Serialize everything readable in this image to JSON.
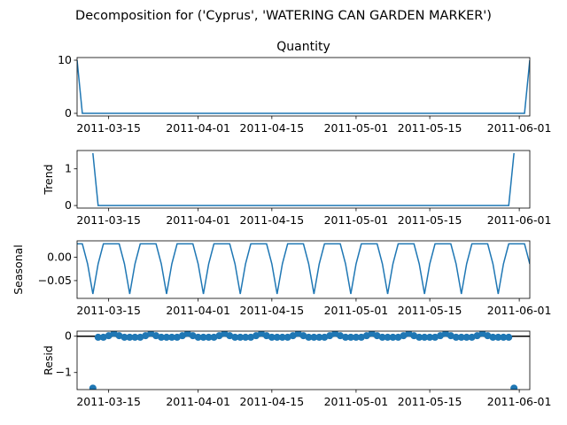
{
  "figure": {
    "suptitle": "Decomposition for ('Cyprus', 'WATERING CAN GARDEN MARKER')"
  },
  "colors": {
    "series": "#1f77b4",
    "axis": "#000000",
    "background": "#ffffff"
  },
  "chart_data": [
    {
      "type": "line",
      "title": "Quantity",
      "ylabel": "",
      "x_start": "2011-03-09",
      "x_end": "2011-06-03",
      "ylim": [
        -0.5,
        10.5
      ],
      "yticks": [
        0,
        10
      ],
      "ytick_labels": [
        "0",
        "10"
      ],
      "xticks": [
        "2011-03-15",
        "2011-04-01",
        "2011-04-15",
        "2011-05-01",
        "2011-05-15",
        "2011-06-01"
      ],
      "series": [
        {
          "x": [
            "2011-03-09",
            "2011-03-10",
            "2011-06-02",
            "2011-06-03"
          ],
          "values": [
            10,
            0,
            0,
            10
          ]
        }
      ]
    },
    {
      "type": "line",
      "title": "",
      "ylabel": "Trend",
      "x_start": "2011-03-09",
      "x_end": "2011-06-03",
      "ylim": [
        -0.07,
        1.5
      ],
      "yticks": [
        0,
        1
      ],
      "ytick_labels": [
        "0",
        "1"
      ],
      "xticks": [
        "2011-03-15",
        "2011-04-01",
        "2011-04-15",
        "2011-05-01",
        "2011-05-15",
        "2011-06-01"
      ],
      "series": [
        {
          "x": [
            "2011-03-12",
            "2011-03-13",
            "2011-05-30",
            "2011-05-31"
          ],
          "values": [
            1.43,
            0,
            0,
            1.43
          ]
        }
      ]
    },
    {
      "type": "line",
      "title": "",
      "ylabel": "Seasonal",
      "x_start": "2011-03-09",
      "x_end": "2011-06-03",
      "ylim": [
        -0.088,
        0.035
      ],
      "yticks": [
        0.0,
        -0.05
      ],
      "ytick_labels": [
        "0.00",
        "−0.05"
      ],
      "xticks": [
        "2011-03-15",
        "2011-04-01",
        "2011-04-15",
        "2011-05-01",
        "2011-05-15",
        "2011-06-01"
      ],
      "pattern": {
        "start": "2011-03-09",
        "period_days": 7,
        "values": [
          0.0286,
          0.0286,
          -0.0143,
          -0.0786,
          -0.0143,
          0.0286,
          0.0286
        ]
      }
    },
    {
      "type": "scatter",
      "title": "",
      "ylabel": "Resid",
      "x_start": "2011-03-09",
      "x_end": "2011-06-03",
      "ylim": [
        -1.47,
        0.14
      ],
      "yticks": [
        0,
        -1
      ],
      "ytick_labels": [
        "0",
        "−1"
      ],
      "xticks": [
        "2011-03-15",
        "2011-04-01",
        "2011-04-15",
        "2011-05-01",
        "2011-05-15",
        "2011-06-01"
      ],
      "baseline": 0,
      "outliers": [
        {
          "x": "2011-03-12",
          "y": -1.43
        },
        {
          "x": "2011-05-31",
          "y": -1.43
        }
      ],
      "pattern": {
        "start": "2011-03-13",
        "end": "2011-05-30",
        "period_days": 7,
        "values": [
          -0.0286,
          -0.0286,
          0.0143,
          0.0786,
          0.0143,
          -0.0286,
          -0.0286
        ]
      }
    }
  ]
}
